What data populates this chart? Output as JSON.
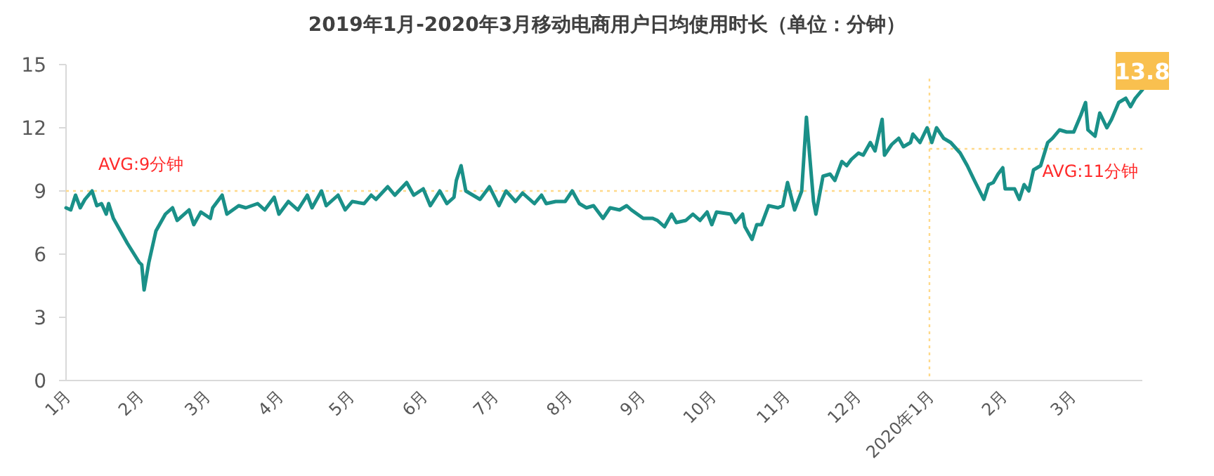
{
  "chart_data": {
    "type": "line",
    "title": "2019年1月-2020年3月移动电商用户日均使用时长（单位：分钟）",
    "x": [
      "2019-01-01",
      "2019-01-03",
      "2019-01-05",
      "2019-01-07",
      "2019-01-09",
      "2019-01-12",
      "2019-01-14",
      "2019-01-16",
      "2019-01-18",
      "2019-01-19",
      "2019-01-21",
      "2019-01-24",
      "2019-01-27",
      "2019-02-01",
      "2019-02-02",
      "2019-02-03",
      "2019-02-05",
      "2019-02-08",
      "2019-02-12",
      "2019-02-15",
      "2019-02-17",
      "2019-02-22",
      "2019-02-24",
      "2019-02-27",
      "2019-03-03",
      "2019-03-04",
      "2019-03-08",
      "2019-03-10",
      "2019-03-15",
      "2019-03-18",
      "2019-03-23",
      "2019-03-26",
      "2019-03-30",
      "2019-04-01",
      "2019-04-05",
      "2019-04-09",
      "2019-04-13",
      "2019-04-15",
      "2019-04-19",
      "2019-04-21",
      "2019-04-26",
      "2019-04-29",
      "2019-05-02",
      "2019-05-07",
      "2019-05-10",
      "2019-05-12",
      "2019-05-17",
      "2019-05-20",
      "2019-05-25",
      "2019-05-28",
      "2019-06-01",
      "2019-06-04",
      "2019-06-08",
      "2019-06-11",
      "2019-06-14",
      "2019-06-15",
      "2019-06-17",
      "2019-06-19",
      "2019-06-22",
      "2019-06-25",
      "2019-06-29",
      "2019-07-03",
      "2019-07-06",
      "2019-07-10",
      "2019-07-13",
      "2019-07-18",
      "2019-07-21",
      "2019-07-23",
      "2019-07-27",
      "2019-07-31",
      "2019-08-03",
      "2019-08-06",
      "2019-08-09",
      "2019-08-12",
      "2019-08-16",
      "2019-08-19",
      "2019-08-23",
      "2019-08-26",
      "2019-08-28",
      "2019-09-02",
      "2019-09-06",
      "2019-09-08",
      "2019-09-11",
      "2019-09-14",
      "2019-09-16",
      "2019-09-20",
      "2019-09-23",
      "2019-09-26",
      "2019-09-29",
      "2019-10-01",
      "2019-10-03",
      "2019-10-09",
      "2019-10-11",
      "2019-10-14",
      "2019-10-15",
      "2019-10-18",
      "2019-10-20",
      "2019-10-22",
      "2019-10-25",
      "2019-10-29",
      "2019-10-31",
      "2019-11-02",
      "2019-11-05",
      "2019-11-08",
      "2019-11-10",
      "2019-11-13",
      "2019-11-14",
      "2019-11-17",
      "2019-11-20",
      "2019-11-22",
      "2019-11-25",
      "2019-11-27",
      "2019-11-29",
      "2019-12-02",
      "2019-12-04",
      "2019-12-07",
      "2019-12-09",
      "2019-12-12",
      "2019-12-13",
      "2019-12-16",
      "2019-12-19",
      "2019-12-21",
      "2019-12-24",
      "2019-12-25",
      "2019-12-28",
      "2019-12-31",
      "2020-01-02",
      "2020-01-04",
      "2020-01-07",
      "2020-01-10",
      "2020-01-14",
      "2020-01-17",
      "2020-01-20",
      "2020-01-24",
      "2020-01-26",
      "2020-01-28",
      "2020-01-30",
      "2020-02-01",
      "2020-02-02",
      "2020-02-06",
      "2020-02-08",
      "2020-02-10",
      "2020-02-12",
      "2020-02-14",
      "2020-02-17",
      "2020-02-20",
      "2020-02-22",
      "2020-02-25",
      "2020-02-28",
      "2020-03-02",
      "2020-03-05",
      "2020-03-07",
      "2020-03-08",
      "2020-03-11",
      "2020-03-13",
      "2020-03-16",
      "2020-03-18",
      "2020-03-21",
      "2020-03-24",
      "2020-03-26",
      "2020-03-28",
      "2020-03-31"
    ],
    "series": [
      {
        "color": "#1a9088",
        "values": [
          8.2,
          8.1,
          8.8,
          8.2,
          8.6,
          9.0,
          8.3,
          8.4,
          7.9,
          8.4,
          7.7,
          7.1,
          6.5,
          5.6,
          5.5,
          4.3,
          5.6,
          7.1,
          7.9,
          8.2,
          7.6,
          8.1,
          7.4,
          8.0,
          7.7,
          8.2,
          8.8,
          7.9,
          8.3,
          8.2,
          8.4,
          8.1,
          8.7,
          7.9,
          8.5,
          8.1,
          8.8,
          8.2,
          9.0,
          8.3,
          8.8,
          8.1,
          8.5,
          8.4,
          8.8,
          8.6,
          9.2,
          8.8,
          9.4,
          8.8,
          9.1,
          8.3,
          9.0,
          8.4,
          8.7,
          9.5,
          10.2,
          9.0,
          8.8,
          8.6,
          9.2,
          8.3,
          9.0,
          8.5,
          8.9,
          8.4,
          8.8,
          8.4,
          8.5,
          8.5,
          9.0,
          8.4,
          8.2,
          8.3,
          7.7,
          8.2,
          8.1,
          8.3,
          8.1,
          7.7,
          7.7,
          7.6,
          7.3,
          7.9,
          7.5,
          7.6,
          7.9,
          7.6,
          8.0,
          7.4,
          8.0,
          7.9,
          7.5,
          7.9,
          7.3,
          6.7,
          7.4,
          7.4,
          8.3,
          8.2,
          8.3,
          9.4,
          8.1,
          9.0,
          12.5,
          8.5,
          7.9,
          9.7,
          9.8,
          9.5,
          10.4,
          10.2,
          10.5,
          10.8,
          10.7,
          11.3,
          10.9,
          12.4,
          10.7,
          11.2,
          11.5,
          11.1,
          11.3,
          11.7,
          11.3,
          12.0,
          11.3,
          12.0,
          11.5,
          11.3,
          10.8,
          10.2,
          9.5,
          8.6,
          9.3,
          9.4,
          9.8,
          10.1,
          9.1,
          9.1,
          8.6,
          9.3,
          9.0,
          10.0,
          10.2,
          11.3,
          11.5,
          11.9,
          11.8,
          11.8,
          12.6,
          13.2,
          11.9,
          11.6,
          12.7,
          12.0,
          12.4,
          13.2,
          13.4,
          13.0,
          13.4,
          13.8
        ]
      }
    ],
    "xlim": [
      "2019-01-01",
      "2020-03-31"
    ],
    "xticks": [
      {
        "value": "2019-01-01",
        "label": "1月"
      },
      {
        "value": "2019-02-01",
        "label": "2月"
      },
      {
        "value": "2019-03-01",
        "label": "3月"
      },
      {
        "value": "2019-04-01",
        "label": "4月"
      },
      {
        "value": "2019-05-01",
        "label": "5月"
      },
      {
        "value": "2019-06-01",
        "label": "6月"
      },
      {
        "value": "2019-07-01",
        "label": "7月"
      },
      {
        "value": "2019-08-01",
        "label": "8月"
      },
      {
        "value": "2019-09-01",
        "label": "9月"
      },
      {
        "value": "2019-10-01",
        "label": "10月"
      },
      {
        "value": "2019-11-01",
        "label": "11月"
      },
      {
        "value": "2019-12-01",
        "label": "12月"
      },
      {
        "value": "2020-01-01",
        "label": "2020年1月"
      },
      {
        "value": "2020-02-01",
        "label": "2月"
      },
      {
        "value": "2020-03-01",
        "label": "3月"
      }
    ],
    "ylim": [
      0,
      15
    ],
    "yticks": [
      0,
      3,
      6,
      9,
      12,
      15
    ],
    "ref_lines": [
      {
        "axis": "y",
        "value": 9,
        "label": "AVG:9分钟",
        "color": "#ffd98a",
        "line_style": "dotted"
      },
      {
        "axis": "y",
        "value": 11,
        "label": "AVG:11分钟",
        "color": "#ffd98a",
        "line_style": "dotted"
      },
      {
        "axis": "x",
        "value": "2020-01-01",
        "label": null,
        "color": "#ffd98a",
        "line_style": "dotted"
      }
    ],
    "annotations": [
      {
        "text": "13.8",
        "x": "2020-03-31",
        "y": 13.8
      }
    ]
  }
}
